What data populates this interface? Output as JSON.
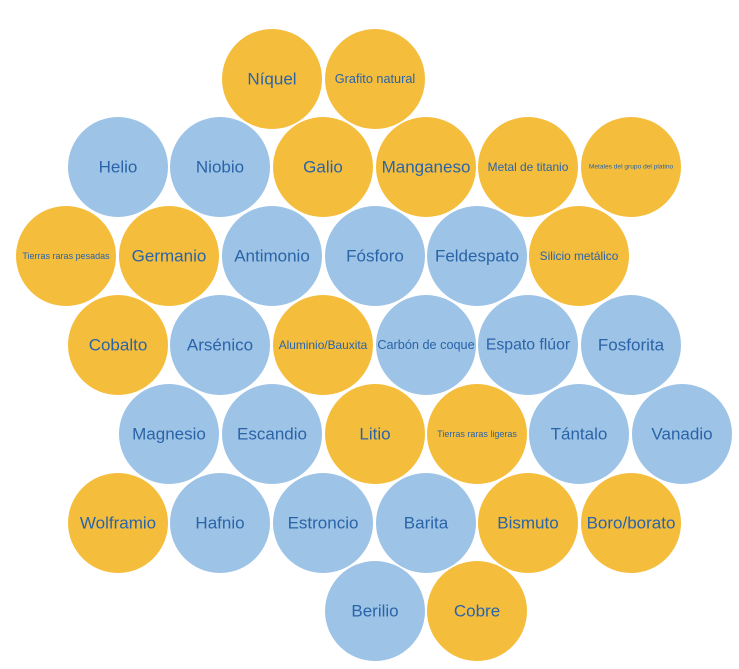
{
  "nodes": [
    {
      "label": "Níquel",
      "color": "#f5bd3c"
    },
    {
      "label": "Grafito natural",
      "color": "#f5bd3c"
    },
    {
      "label": "Helio",
      "color": "#9dc3e6"
    },
    {
      "label": "Niobio",
      "color": "#9dc3e6"
    },
    {
      "label": "Galio",
      "color": "#f5bd3c"
    },
    {
      "label": "Manganeso",
      "color": "#f5bd3c"
    },
    {
      "label": "Metal de titanio",
      "color": "#f5bd3c"
    },
    {
      "label": "Metales del grupo del platino",
      "color": "#f5bd3c"
    },
    {
      "label": "Tierras raras pesadas",
      "color": "#f5bd3c"
    },
    {
      "label": "Germanio",
      "color": "#f5bd3c"
    },
    {
      "label": "Antimonio",
      "color": "#9dc3e6"
    },
    {
      "label": "Fósforo",
      "color": "#9dc3e6"
    },
    {
      "label": "Feldespato",
      "color": "#9dc3e6"
    },
    {
      "label": "Silicio metálico",
      "color": "#f5bd3c"
    },
    {
      "label": "Cobalto",
      "color": "#f5bd3c"
    },
    {
      "label": "Arsénico",
      "color": "#9dc3e6"
    },
    {
      "label": "Aluminio/Bauxita",
      "color": "#f5bd3c"
    },
    {
      "label": "Carbón de coque",
      "color": "#9dc3e6"
    },
    {
      "label": "Espato flúor",
      "color": "#9dc3e6"
    },
    {
      "label": "Fosforita",
      "color": "#9dc3e6"
    },
    {
      "label": "Magnesio",
      "color": "#9dc3e6"
    },
    {
      "label": "Escandio",
      "color": "#9dc3e6"
    },
    {
      "label": "Litio",
      "color": "#f5bd3c"
    },
    {
      "label": "Tierras raras ligeras",
      "color": "#f5bd3c"
    },
    {
      "label": "Tántalo",
      "color": "#9dc3e6"
    },
    {
      "label": "Vanadio",
      "color": "#9dc3e6"
    },
    {
      "label": "Wolframio",
      "color": "#f5bd3c"
    },
    {
      "label": "Hafnio",
      "color": "#9dc3e6"
    },
    {
      "label": "Estroncio",
      "color": "#9dc3e6"
    },
    {
      "label": "Barita",
      "color": "#9dc3e6"
    },
    {
      "label": "Bismuto",
      "color": "#f5bd3c"
    },
    {
      "label": "Boro/borato",
      "color": "#f5bd3c"
    },
    {
      "label": "Berilio",
      "color": "#9dc3e6"
    },
    {
      "label": "Cobre",
      "color": "#f5bd3c"
    }
  ]
}
